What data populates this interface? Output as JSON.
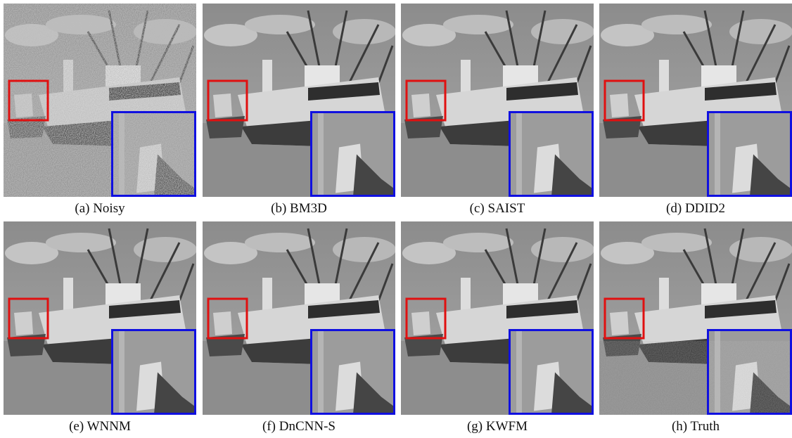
{
  "panels": [
    {
      "caption": "(a) Noisy"
    },
    {
      "caption": "(b) BM3D"
    },
    {
      "caption": "(c) SAIST"
    },
    {
      "caption": "(d) DDID2"
    },
    {
      "caption": "(e) WNNM"
    },
    {
      "caption": "(f) DnCNN-S"
    },
    {
      "caption": "(g) KWFM"
    },
    {
      "caption": "(h) Truth"
    }
  ]
}
